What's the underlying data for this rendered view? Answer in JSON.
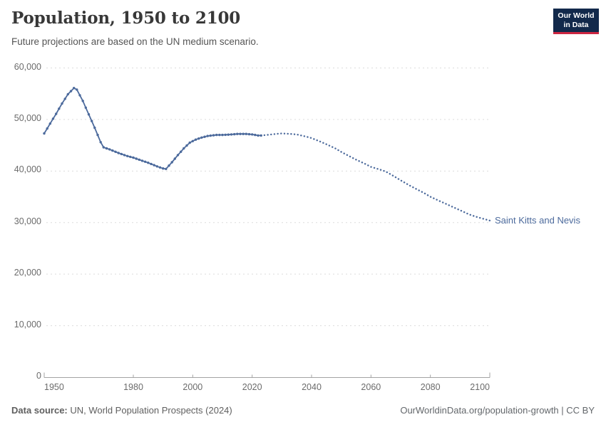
{
  "header": {
    "title": "Population, 1950 to 2100",
    "subtitle": "Future projections are based on the UN medium scenario.",
    "logo": {
      "line1": "Our World",
      "line2": "in Data",
      "bg_color": "#12294b",
      "accent_color": "#cd2642"
    }
  },
  "annotations": {
    "entity_label": "Saint Kitts and Nevis"
  },
  "chart_data": {
    "type": "line",
    "title": "Population, 1950 to 2100",
    "subtitle": "Future projections are based on the UN medium scenario.",
    "xlabel": "",
    "ylabel": "",
    "xlim": [
      1950,
      2100
    ],
    "ylim": [
      0,
      60000
    ],
    "grid": true,
    "x_ticks": [
      1950,
      1980,
      2000,
      2020,
      2040,
      2060,
      2080,
      2100
    ],
    "x_tick_labels": [
      "1950",
      "1980",
      "2000",
      "2020",
      "2040",
      "2060",
      "2080",
      "2100"
    ],
    "y_ticks": [
      0,
      10000,
      20000,
      30000,
      40000,
      50000,
      60000
    ],
    "y_tick_labels": [
      "0",
      "10,000",
      "20,000",
      "30,000",
      "40,000",
      "50,000",
      "60,000"
    ],
    "solid_until": 2023,
    "projection_style": "dotted",
    "series": [
      {
        "name": "Saint Kitts and Nevis",
        "color": "#4c6a9c",
        "observed": [
          [
            1950,
            47300
          ],
          [
            1952,
            49200
          ],
          [
            1954,
            51100
          ],
          [
            1956,
            53100
          ],
          [
            1958,
            54900
          ],
          [
            1960,
            56100
          ],
          [
            1961,
            55800
          ],
          [
            1963,
            53600
          ],
          [
            1965,
            51000
          ],
          [
            1967,
            48400
          ],
          [
            1969,
            45600
          ],
          [
            1970,
            44600
          ],
          [
            1972,
            44200
          ],
          [
            1975,
            43500
          ],
          [
            1978,
            42900
          ],
          [
            1980,
            42600
          ],
          [
            1983,
            42000
          ],
          [
            1985,
            41600
          ],
          [
            1988,
            40900
          ],
          [
            1990,
            40500
          ],
          [
            1991,
            40400
          ],
          [
            1993,
            41700
          ],
          [
            1995,
            43100
          ],
          [
            1997,
            44400
          ],
          [
            1999,
            45500
          ],
          [
            2001,
            46100
          ],
          [
            2003,
            46500
          ],
          [
            2005,
            46800
          ],
          [
            2008,
            47000
          ],
          [
            2010,
            47000
          ],
          [
            2013,
            47100
          ],
          [
            2015,
            47200
          ],
          [
            2018,
            47200
          ],
          [
            2020,
            47100
          ],
          [
            2022,
            46900
          ],
          [
            2023,
            46900
          ]
        ],
        "projected": [
          [
            2023,
            46900
          ],
          [
            2025,
            47000
          ],
          [
            2028,
            47200
          ],
          [
            2030,
            47300
          ],
          [
            2033,
            47200
          ],
          [
            2035,
            47100
          ],
          [
            2038,
            46700
          ],
          [
            2040,
            46400
          ],
          [
            2043,
            45700
          ],
          [
            2045,
            45200
          ],
          [
            2048,
            44400
          ],
          [
            2050,
            43700
          ],
          [
            2053,
            42800
          ],
          [
            2055,
            42200
          ],
          [
            2058,
            41400
          ],
          [
            2060,
            40800
          ],
          [
            2063,
            40300
          ],
          [
            2065,
            39900
          ],
          [
            2068,
            38900
          ],
          [
            2070,
            38200
          ],
          [
            2073,
            37200
          ],
          [
            2075,
            36600
          ],
          [
            2078,
            35700
          ],
          [
            2080,
            35000
          ],
          [
            2083,
            34200
          ],
          [
            2085,
            33700
          ],
          [
            2088,
            32900
          ],
          [
            2090,
            32400
          ],
          [
            2093,
            31600
          ],
          [
            2095,
            31200
          ],
          [
            2098,
            30700
          ],
          [
            2100,
            30400
          ]
        ]
      }
    ]
  },
  "footer": {
    "source_label": "Data source:",
    "source_text": " UN, World Population Prospects (2024)",
    "credit": "OurWorldinData.org/population-growth | CC BY"
  }
}
